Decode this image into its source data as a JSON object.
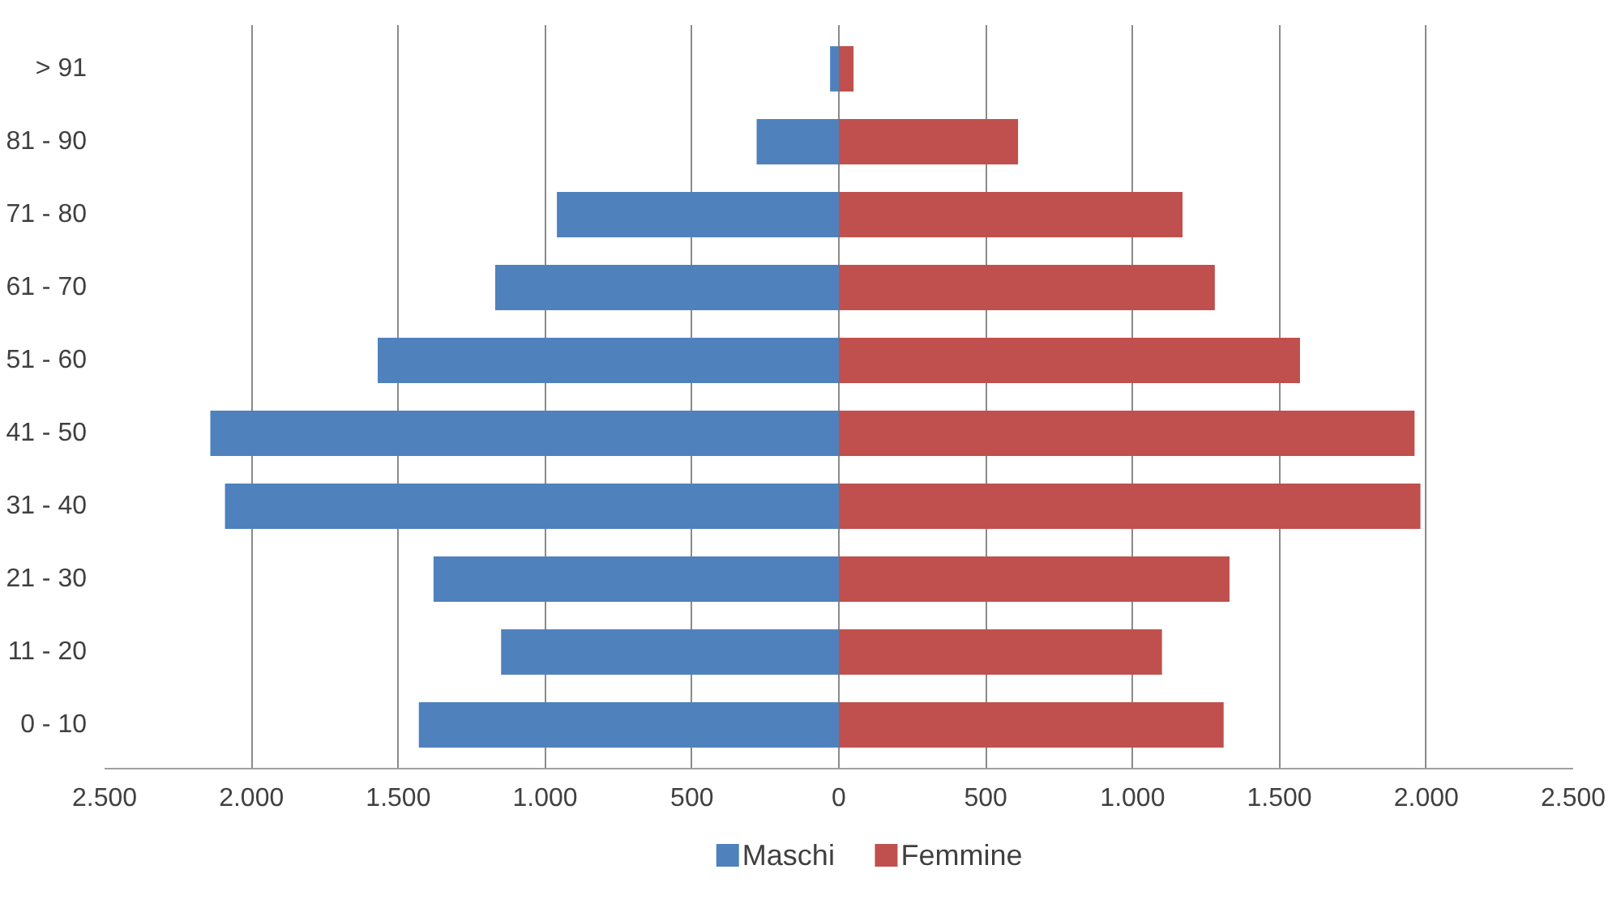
{
  "chart_data": {
    "type": "bar",
    "orientation": "horizontal",
    "stacked": true,
    "categories": [
      "> 91",
      "81 - 90",
      "71 - 80",
      "61 - 70",
      "51 - 60",
      "41 - 50",
      "31 - 40",
      "21 - 30",
      "11 - 20",
      "0 - 10"
    ],
    "series": [
      {
        "name": "Maschi",
        "color": "#4f81bd",
        "values": [
          -30,
          -280,
          -960,
          -1170,
          -1570,
          -2140,
          -2090,
          -1380,
          -1150,
          -1430
        ]
      },
      {
        "name": "Femmine",
        "color": "#c0504d",
        "values": [
          50,
          610,
          1170,
          1280,
          1570,
          1960,
          1980,
          1330,
          1100,
          1310
        ]
      }
    ],
    "xlim": [
      -2500,
      2500
    ],
    "xticks": [
      {
        "value": -2500,
        "label": "2.500"
      },
      {
        "value": -2000,
        "label": "2.000"
      },
      {
        "value": -1500,
        "label": "1.500"
      },
      {
        "value": -1000,
        "label": "1.000"
      },
      {
        "value": -500,
        "label": "500"
      },
      0,
      500,
      {
        "value": 1000,
        "label": "1.000"
      },
      {
        "value": 1500,
        "label": "1.500"
      },
      {
        "value": 2000,
        "label": "2.000"
      },
      {
        "value": 2500,
        "label": "2.500"
      }
    ],
    "grid": "x",
    "legend": "bottom"
  }
}
